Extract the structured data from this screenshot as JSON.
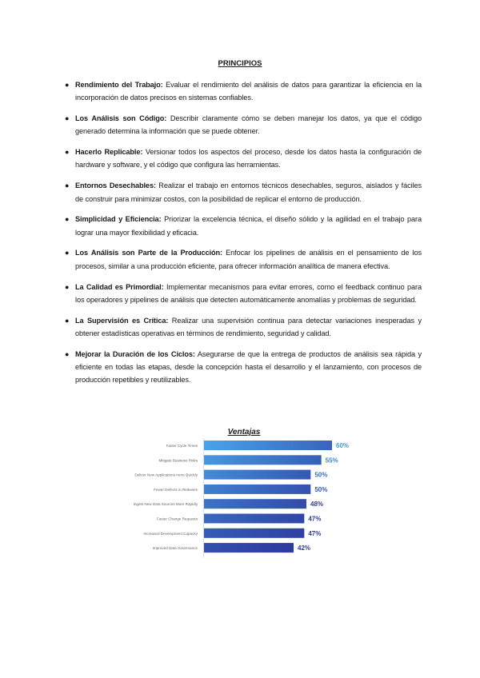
{
  "heading": "PRINCIPIOS",
  "principles": [
    {
      "term": "Rendimiento del Trabajo",
      "text": "Evaluar el rendimiento del análisis de datos para garantizar la eficiencia en la incorporación de datos precisos en sistemas confiables."
    },
    {
      "term": "Los Análisis son Código",
      "text": "Describir claramente cómo se deben manejar los datos, ya que el código generado determina la información que se puede obtener."
    },
    {
      "term": "Hacerlo Replicable",
      "text": "Versionar todos los aspectos del proceso, desde los datos hasta la configuración de hardware y software, y el código que configura las herramientas."
    },
    {
      "term": "Entornos Desechables",
      "text": "Realizar el trabajo en entornos técnicos desechables, seguros, aislados y fáciles de construir para minimizar costos, con la posibilidad de replicar el entorno de producción."
    },
    {
      "term": "Simplicidad y Eficiencia",
      "text": "Priorizar la excelencia técnica, el diseño sólido y la agilidad en el trabajo para lograr una mayor flexibilidad y eficacia."
    },
    {
      "term": "Los Análisis son Parte de la Producción",
      "text": "Enfocar los pipelines de análisis en el pensamiento de los procesos, similar a una producción eficiente, para ofrecer información analítica de manera efectiva."
    },
    {
      "term": "La Calidad es Primordial",
      "text": "Implementar mecanismos para evitar errores, como el feedback continuo para los operadores y pipelines de análisis que detecten automáticamente anomalías y problemas de seguridad."
    },
    {
      "term": "La Supervisión es Crítica",
      "text": "Realizar una supervisión continua para detectar variaciones inesperadas y obtener estadísticas operativas en términos de rendimiento, seguridad y calidad."
    },
    {
      "term": "Mejorar la Duración de los Ciclos",
      "text": "Asegurarse de que la entrega de productos de análisis sea rápida y eficiente en todas las etapas, desde la concepción hasta el desarrollo y el lanzamiento, con procesos de producción repetibles y reutilizables."
    }
  ],
  "chart_data": {
    "type": "bar",
    "orientation": "horizontal",
    "title": "Ventajas",
    "categories": [
      "Faster Cycle Times",
      "Mitigate Business Risks",
      "Deliver New Applications more Quickly",
      "Fewer Defects in Releases",
      "Ingest New Data Sources More Rapidly",
      "Faster Change Requests",
      "Increased Development Capacity",
      "Improved Data Governance"
    ],
    "values": [
      60,
      55,
      50,
      50,
      48,
      47,
      47,
      42
    ],
    "value_labels": [
      "60%",
      "55%",
      "50%",
      "50%",
      "48%",
      "47%",
      "47%",
      "42%"
    ],
    "unit": "%",
    "colors": {
      "light": "#4aa3ea",
      "dark": "#2d3a9e",
      "label_light": "#3c9be8",
      "label_dark": "#2b3a9a"
    },
    "grid": false
  }
}
